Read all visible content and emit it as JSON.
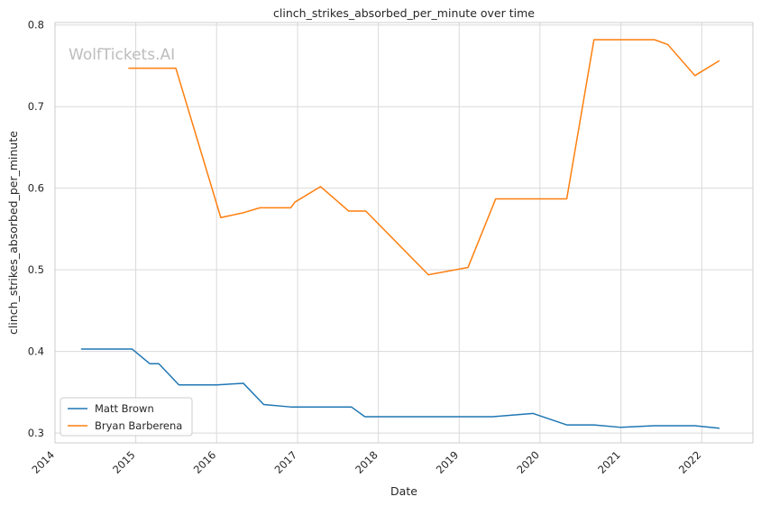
{
  "chart_data": {
    "type": "line",
    "title": "clinch_strikes_absorbed_per_minute over time",
    "xlabel": "Date",
    "ylabel": "clinch_strikes_absorbed_per_minute",
    "watermark": "WolfTickets.AI",
    "xlim": [
      "2014-01-01",
      "2022-08-20"
    ],
    "ylim": [
      0.288,
      0.803
    ],
    "x_ticks": [
      "2014",
      "2015",
      "2016",
      "2017",
      "2018",
      "2019",
      "2020",
      "2021",
      "2022"
    ],
    "y_ticks": [
      "0.3",
      "0.4",
      "0.5",
      "0.6",
      "0.7",
      "0.8"
    ],
    "grid": true,
    "legend_position": "lower-left",
    "series": [
      {
        "name": "Matt Brown",
        "color": "#1f77b4",
        "x": [
          "2014-05-01",
          "2014-12-15",
          "2015-03-05",
          "2015-04-15",
          "2015-07-15",
          "2016-01-01",
          "2016-05-01",
          "2016-08-01",
          "2016-12-01",
          "2017-09-01",
          "2017-11-01",
          "2019-06-01",
          "2019-12-01",
          "2020-05-01",
          "2020-09-01",
          "2021-01-01",
          "2021-06-01",
          "2021-12-01",
          "2022-03-20"
        ],
        "values": [
          0.403,
          0.403,
          0.385,
          0.385,
          0.359,
          0.359,
          0.361,
          0.335,
          0.332,
          0.332,
          0.32,
          0.32,
          0.324,
          0.31,
          0.31,
          0.307,
          0.309,
          0.309,
          0.306
        ]
      },
      {
        "name": "Bryan Barberena",
        "color": "#ff7f0e",
        "x": [
          "2014-12-01",
          "2015-07-01",
          "2016-01-20",
          "2016-05-01",
          "2016-07-15",
          "2016-12-01",
          "2016-12-20",
          "2017-04-15",
          "2017-08-20",
          "2017-11-05",
          "2018-08-15",
          "2019-02-10",
          "2019-06-15",
          "2020-05-01",
          "2020-09-01",
          "2021-06-01",
          "2021-08-01",
          "2021-12-01",
          "2022-03-20"
        ],
        "values": [
          0.747,
          0.747,
          0.564,
          0.57,
          0.576,
          0.576,
          0.583,
          0.602,
          0.572,
          0.572,
          0.494,
          0.503,
          0.587,
          0.587,
          0.782,
          0.782,
          0.776,
          0.738,
          0.756
        ]
      }
    ]
  }
}
